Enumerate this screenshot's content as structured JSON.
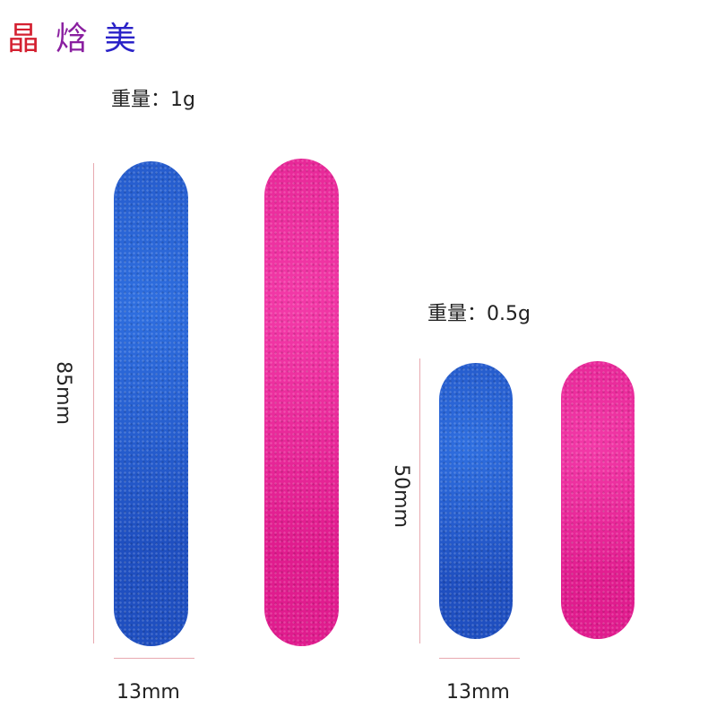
{
  "logo": {
    "chars": [
      "晶",
      "焓",
      "美"
    ],
    "colors": [
      "#d42030",
      "#8a1fa0",
      "#2a22c8"
    ]
  },
  "large": {
    "weight_label": "重量：1g",
    "length_label": "85mm",
    "width_label": "13mm"
  },
  "small": {
    "weight_label": "重量：0.5g",
    "length_label": "50mm",
    "width_label": "13mm"
  },
  "colors": {
    "blue": "#2456cc",
    "pink": "#e8229a",
    "dimension_line": "#e8a9b0"
  }
}
